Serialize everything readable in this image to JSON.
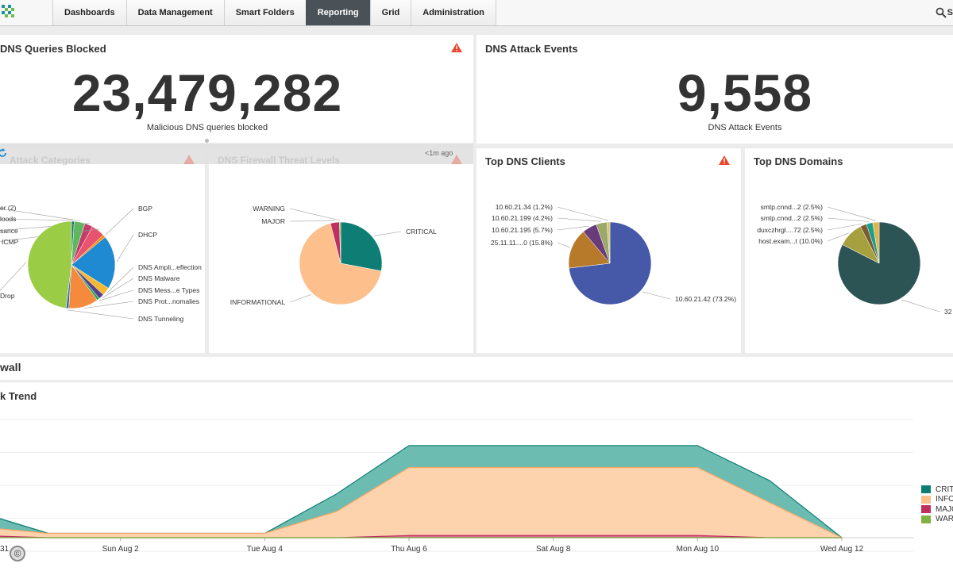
{
  "nav": {
    "tabs": [
      "Dashboards",
      "Data Management",
      "Smart Folders",
      "Reporting",
      "Grid",
      "Administration"
    ],
    "active_tab": "Reporting",
    "search_label": "S"
  },
  "queries_blocked": {
    "title": "DNS Queries Blocked",
    "value": "23,479,282",
    "caption": "Malicious DNS queries blocked"
  },
  "attack_events": {
    "title": "DNS Attack Events",
    "value": "9,558",
    "caption": "DNS Attack Events"
  },
  "overlay": {
    "ghost_left": "Attack Categories",
    "ghost_right": "DNS Firewall Threat Levels",
    "timestamp": "<1m ago"
  },
  "top_clients": {
    "title": "Top DNS Clients"
  },
  "top_domains": {
    "title": "Top DNS Domains"
  },
  "section_title": "wall",
  "trend_title": "k Trend",
  "colors": {
    "critical": "#0e7e74",
    "informational": "#fdbf8c",
    "major": "#c0305f",
    "warning": "#7cb342",
    "warn_icon": "#e8462f"
  },
  "legend": [
    "CRIT",
    "INFO",
    "MAJO",
    "WAR"
  ],
  "chart_data": [
    {
      "type": "pie",
      "labels": [
        "er (2)",
        "loods",
        "sance",
        "ICMP",
        "BGP",
        "DHCP",
        "DNS Ampli...eflection",
        "DNS Malware",
        "DNS Mess...e Types",
        "DNS Prot...nomalies",
        "DNS Tunneling",
        "Drop"
      ],
      "values": [
        1,
        4,
        3,
        5,
        1,
        20,
        3,
        2,
        1,
        11,
        1,
        48
      ],
      "colors": [
        "#1a7a70",
        "#5cb85c",
        "#c43d6a",
        "#e8546e",
        "#ff8c00",
        "#1f8ad1",
        "#f4b92e",
        "#5a3e8c",
        "#27a857",
        "#f58a3d",
        "#2d6fb7",
        "#9acc45"
      ]
    },
    {
      "type": "pie",
      "labels": [
        "CRITICAL",
        "INFORMATIONAL",
        "MAJOR",
        "WARNING"
      ],
      "values": [
        28,
        68,
        3.5,
        0.5
      ],
      "colors": [
        "#0e7e74",
        "#fdbf8c",
        "#c0305f",
        "#7cb342"
      ]
    },
    {
      "type": "pie",
      "labels": [
        "10.60.21.42 (73.2%)",
        "25.11.11....0 (15.8%)",
        "10.60.21.195 (5.7%)",
        "10.60.21.199 (4.2%)",
        "10.60.21.34 (1.2%)"
      ],
      "values": [
        73.2,
        15.8,
        5.7,
        4.2,
        1.2
      ],
      "colors": [
        "#4659a8",
        "#b7792a",
        "#6a3b7a",
        "#9aa86a",
        "#d6c46b"
      ]
    },
    {
      "type": "pie",
      "labels": [
        "32",
        "host.exam...t (10.0%)",
        "duxczhrgl....72 (2.5%)",
        "smtp.cnnd...2 (2.5%)",
        "smtp.cnnd...2 (2.5%)"
      ],
      "values": [
        82.5,
        10.0,
        2.5,
        2.5,
        2.5
      ],
      "colors": [
        "#2d5455",
        "#a7a03f",
        "#7d5b2f",
        "#1a9f8c",
        "#e0b44a"
      ]
    },
    {
      "type": "area",
      "x": [
        "Jul 31",
        "Aug 1",
        "Aug 2",
        "Aug 3",
        "Aug 4",
        "Aug 5",
        "Aug 6",
        "Aug 7",
        "Aug 8",
        "Aug 9",
        "Aug 10",
        "Aug 11",
        "Aug 12"
      ],
      "x_ticks": [
        "31",
        "Sun Aug 2",
        "Tue Aug 4",
        "Thu Aug 6",
        "Sat Aug 8",
        "Mon Aug 10",
        "Wed Aug 12"
      ],
      "series": [
        {
          "name": "CRIT",
          "values": [
            7,
            0,
            0,
            0,
            0,
            8,
            10,
            10,
            10,
            10,
            10,
            10,
            0
          ]
        },
        {
          "name": "INFO",
          "values": [
            4,
            2,
            2,
            2,
            2,
            12,
            31,
            31,
            31,
            31,
            31,
            16,
            0
          ]
        },
        {
          "name": "MAJO",
          "values": [
            1,
            0,
            0,
            0,
            0,
            0,
            1,
            1,
            1,
            1,
            1,
            0,
            0
          ]
        },
        {
          "name": "WAR",
          "values": [
            0,
            0,
            0,
            0,
            0,
            0,
            0,
            0,
            0,
            0,
            0,
            0,
            0
          ]
        }
      ],
      "stacked": true,
      "ylim": [
        0,
        60
      ],
      "grid": true,
      "legend_position": "right"
    }
  ]
}
